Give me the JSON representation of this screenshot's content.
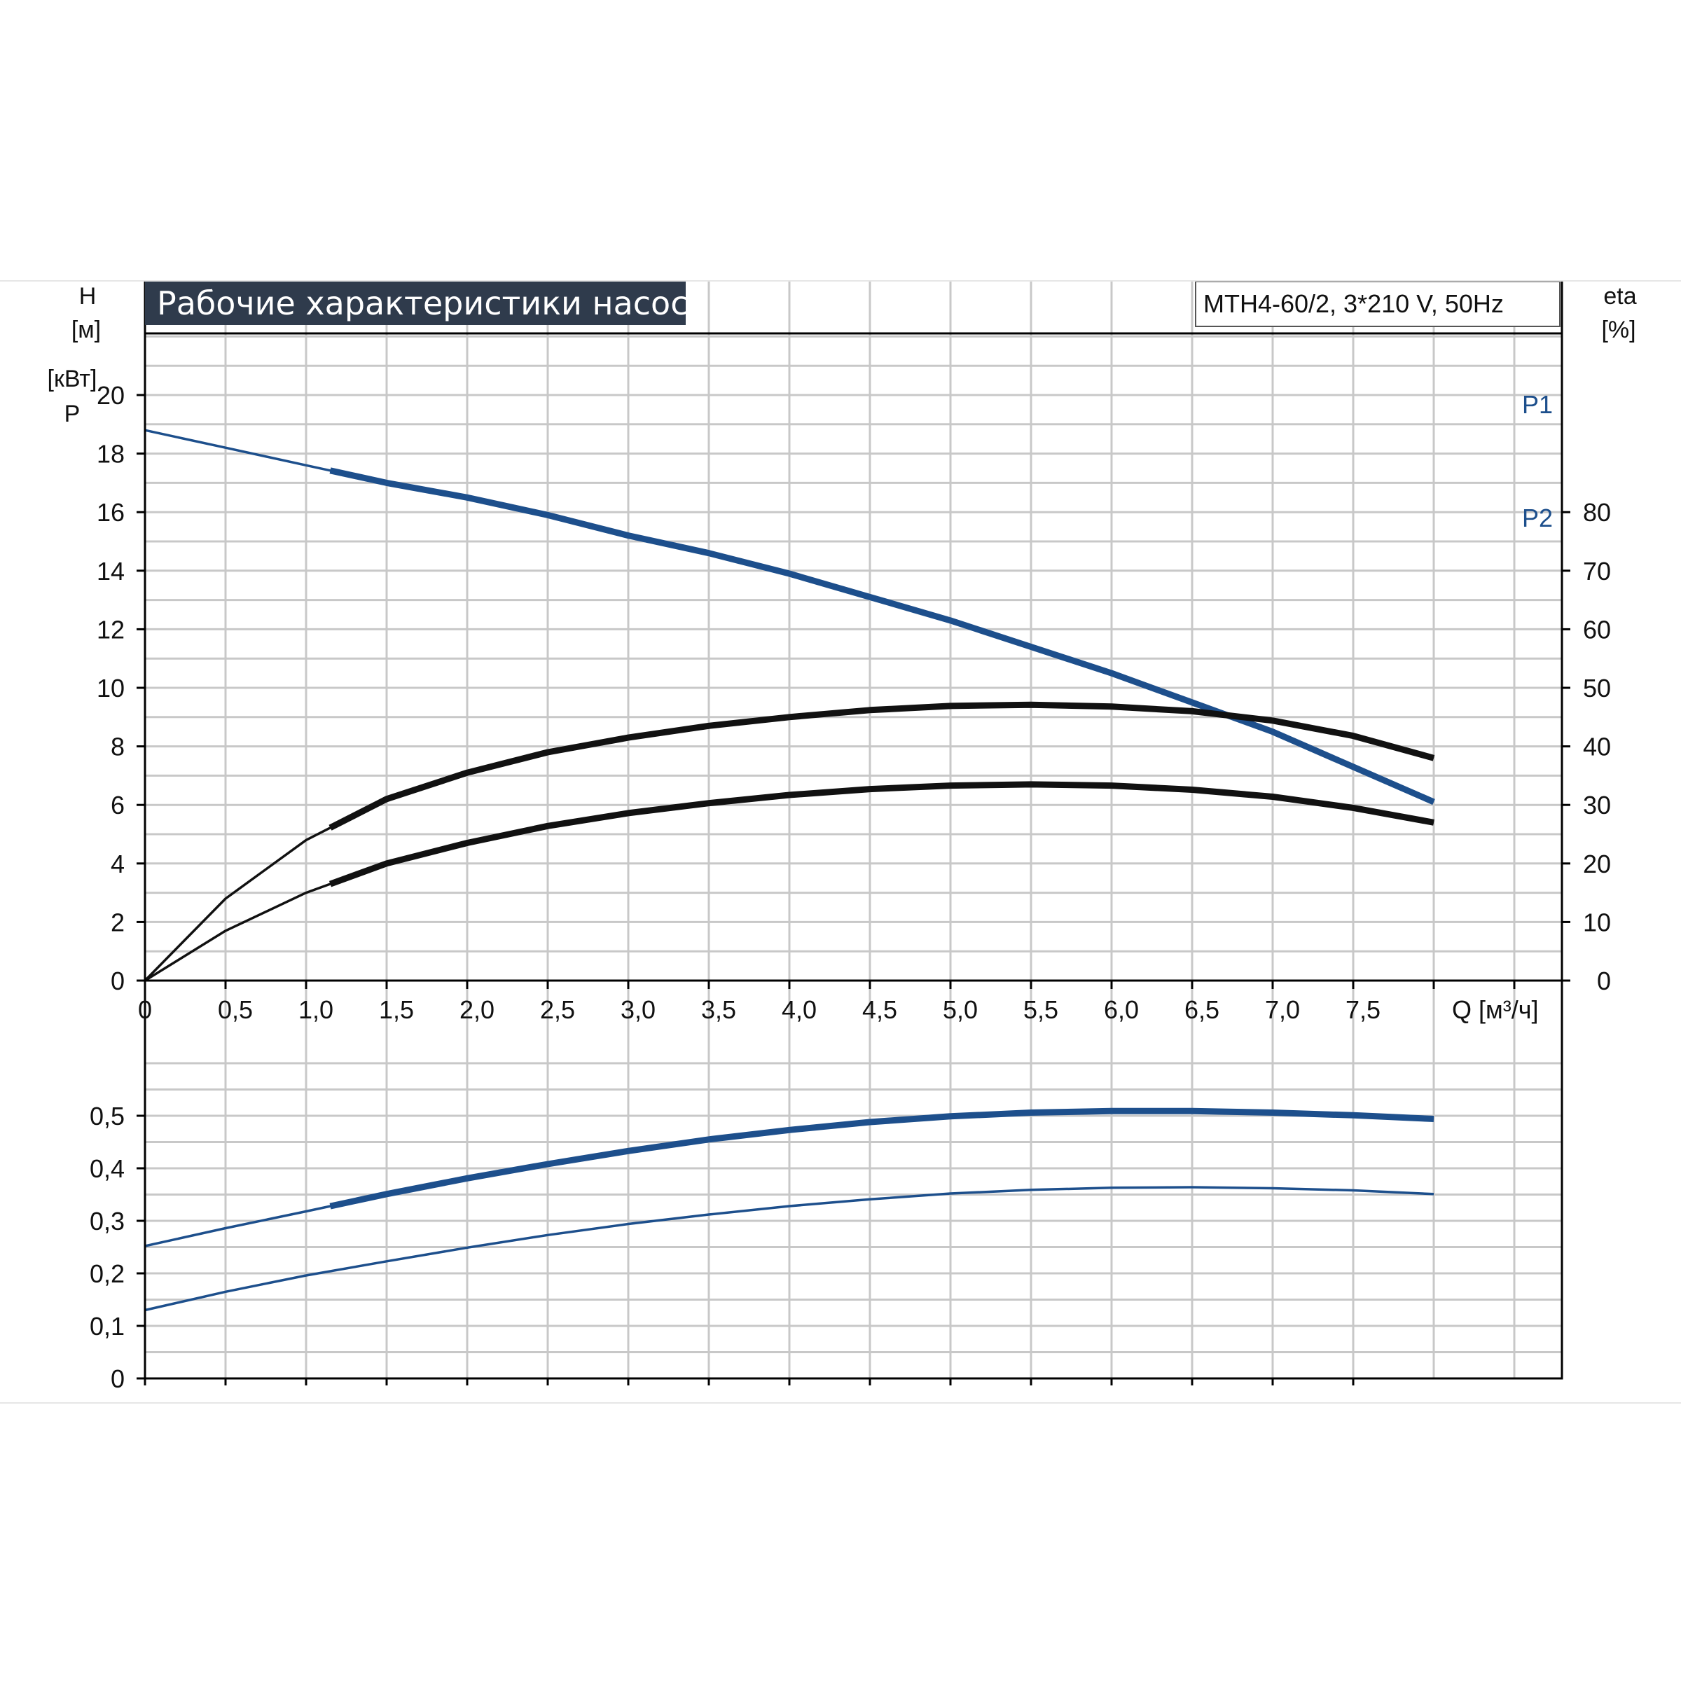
{
  "title": "Рабочие характеристики насоса",
  "model_label": "MTH4-60/2, 3*210 V, 50Hz",
  "colors": {
    "blue": "#1d4f8c",
    "black": "#111111",
    "grid": "#c8c8c8",
    "title_bg": "#2f3b4c"
  },
  "chart_data": [
    {
      "type": "line",
      "y_axis": {
        "label_line1": "H",
        "label_line2": "[м]",
        "ylim": [
          0,
          20
        ],
        "ticks": [
          0,
          2,
          4,
          6,
          8,
          10,
          12,
          14,
          16,
          18,
          20
        ],
        "tick_labels": [
          "0",
          "2",
          "4",
          "6",
          "8",
          "10",
          "12",
          "14",
          "16",
          "18",
          "20"
        ]
      },
      "y2_axis": {
        "label_line1": "eta",
        "label_line2": "[%]",
        "ylim": [
          0,
          80
        ],
        "ticks": [
          0,
          10,
          20,
          30,
          40,
          50,
          60,
          70,
          80
        ],
        "tick_labels": [
          "0",
          "10",
          "20",
          "30",
          "40",
          "50",
          "60",
          "70",
          "80"
        ]
      },
      "x_axis": {
        "label": "Q [м³/ч]",
        "xlim": [
          0,
          8.8
        ],
        "ticks": [
          0,
          0.5,
          1.0,
          1.5,
          2.0,
          2.5,
          3.0,
          3.5,
          4.0,
          4.5,
          5.0,
          5.5,
          6.0,
          6.5,
          7.0,
          7.5
        ],
        "tick_labels": [
          "0",
          "0,5",
          "1,0",
          "1,5",
          "2,0",
          "2,5",
          "3,0",
          "3,5",
          "4,0",
          "4,5",
          "5,0",
          "5,5",
          "6,0",
          "6,5",
          "7,0",
          "7,5"
        ]
      },
      "grid": true,
      "series": [
        {
          "key": "H",
          "axis": "y",
          "color": "#1d4f8c",
          "x": [
            0,
            0.5,
            1.0,
            1.5,
            2.0,
            2.5,
            3.0,
            3.5,
            4.0,
            4.5,
            5.0,
            5.5,
            6.0,
            6.5,
            7.0,
            7.5,
            8.0
          ],
          "y": [
            18.8,
            18.2,
            17.6,
            17.0,
            16.5,
            15.9,
            15.2,
            14.6,
            13.9,
            13.1,
            12.3,
            11.4,
            10.5,
            9.5,
            8.5,
            7.3,
            6.1
          ],
          "bold_from": 1.15
        },
        {
          "key": "eta",
          "axis": "y2",
          "color": "#111111",
          "x": [
            0,
            0.5,
            1.0,
            1.5,
            2.0,
            2.5,
            3.0,
            3.5,
            4.0,
            4.5,
            5.0,
            5.5,
            6.0,
            6.5,
            7.0,
            7.5,
            8.0
          ],
          "y": [
            0,
            14.0,
            24.0,
            31.0,
            35.5,
            39.0,
            41.5,
            43.5,
            45.0,
            46.2,
            46.9,
            47.1,
            46.8,
            46.0,
            44.4,
            41.8,
            38.0
          ],
          "bold_from": 1.15
        },
        {
          "key": "eta-pump",
          "axis": "y2",
          "color": "#111111",
          "x": [
            0,
            0.5,
            1.0,
            1.5,
            2.0,
            2.5,
            3.0,
            3.5,
            4.0,
            4.5,
            5.0,
            5.5,
            6.0,
            6.5,
            7.0,
            7.5,
            8.0
          ],
          "y": [
            0,
            8.5,
            15.0,
            20.0,
            23.5,
            26.4,
            28.6,
            30.3,
            31.7,
            32.7,
            33.3,
            33.5,
            33.3,
            32.6,
            31.4,
            29.5,
            27.0
          ],
          "bold_from": 1.15
        }
      ]
    },
    {
      "type": "line",
      "y_axis": {
        "label_line1": "P",
        "label_line2": "[кВт]",
        "ylim": [
          0,
          0.6
        ],
        "ticks": [
          0,
          0.1,
          0.2,
          0.3,
          0.4,
          0.5
        ],
        "tick_labels": [
          "0",
          "0,1",
          "0,2",
          "0,3",
          "0,4",
          "0,5"
        ]
      },
      "x_axis": {
        "xlim": [
          0,
          8.8
        ],
        "ticks": [
          0,
          0.5,
          1.0,
          1.5,
          2.0,
          2.5,
          3.0,
          3.5,
          4.0,
          4.5,
          5.0,
          5.5,
          6.0,
          6.5,
          7.0,
          7.5
        ]
      },
      "grid": true,
      "series": [
        {
          "name": "P1",
          "color": "#1d4f8c",
          "x": [
            0,
            0.5,
            1.0,
            1.5,
            2.0,
            2.5,
            3.0,
            3.5,
            4.0,
            4.5,
            5.0,
            5.5,
            6.0,
            6.5,
            7.0,
            7.5,
            8.0
          ],
          "y": [
            0.252,
            0.286,
            0.318,
            0.351,
            0.381,
            0.408,
            0.433,
            0.455,
            0.473,
            0.488,
            0.499,
            0.506,
            0.509,
            0.509,
            0.506,
            0.501,
            0.494
          ],
          "bold_from": 1.15
        },
        {
          "name": "P2",
          "color": "#1d4f8c",
          "x": [
            0,
            0.5,
            1.0,
            1.5,
            2.0,
            2.5,
            3.0,
            3.5,
            4.0,
            4.5,
            5.0,
            5.5,
            6.0,
            6.5,
            7.0,
            7.5,
            8.0
          ],
          "y": [
            0.13,
            0.165,
            0.196,
            0.223,
            0.249,
            0.273,
            0.294,
            0.312,
            0.328,
            0.341,
            0.352,
            0.359,
            0.363,
            0.364,
            0.362,
            0.358,
            0.351
          ],
          "bold_from": 99
        }
      ]
    }
  ]
}
